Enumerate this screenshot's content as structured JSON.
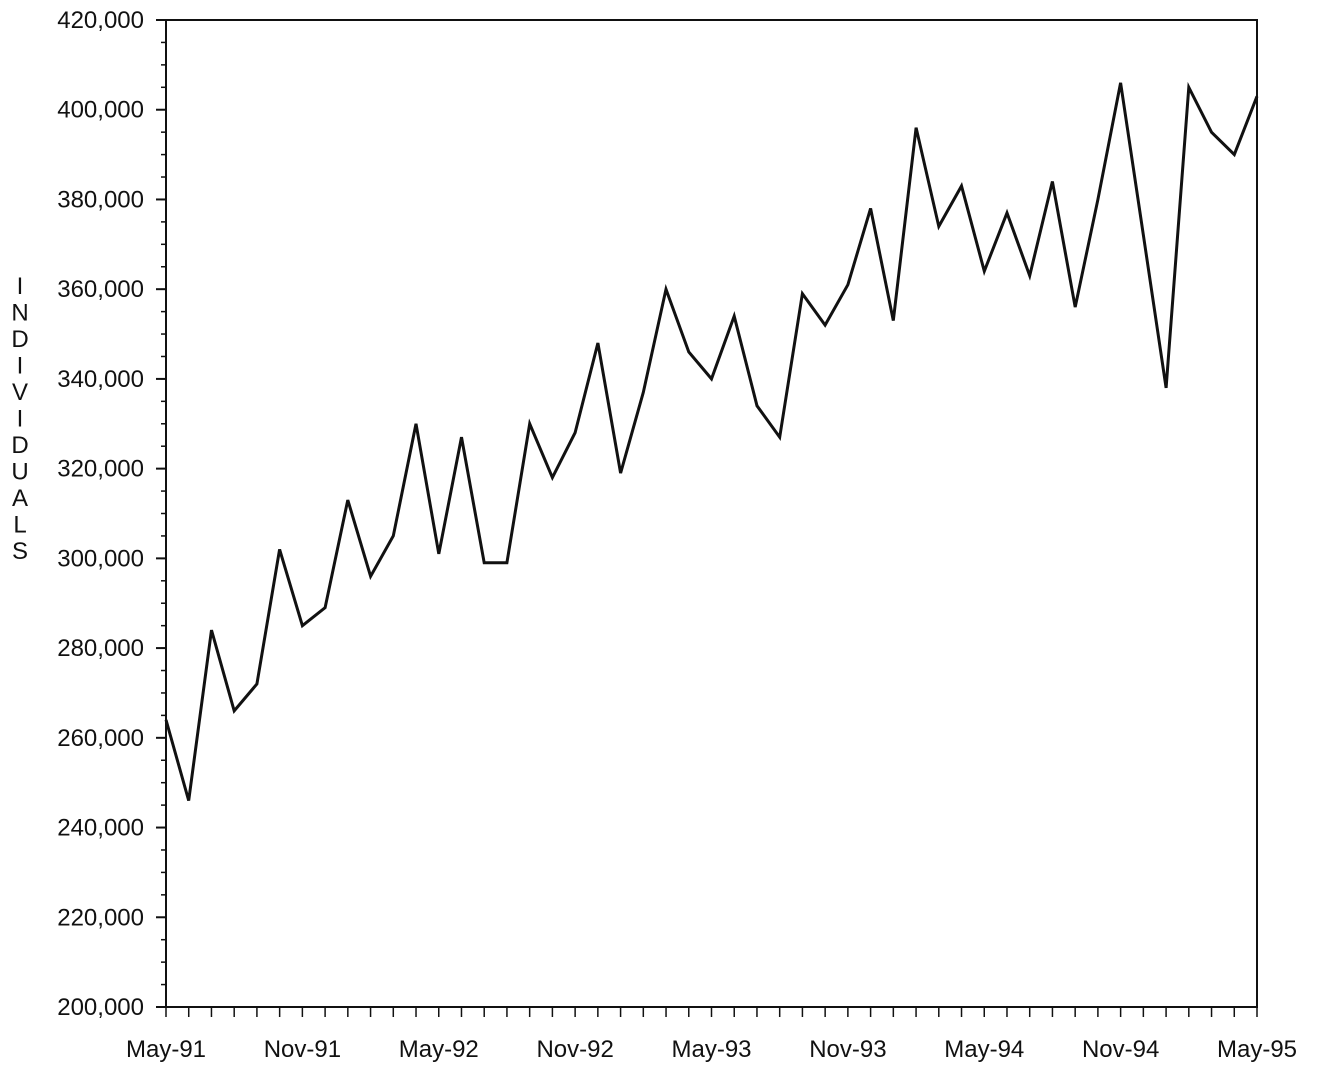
{
  "chart_data": {
    "type": "line",
    "title": "",
    "xlabel": "",
    "ylabel": "INDIVIDUALS",
    "ylim": [
      200000,
      420000
    ],
    "y_ticks": [
      "200,000",
      "220,000",
      "240,000",
      "260,000",
      "280,000",
      "300,000",
      "320,000",
      "340,000",
      "360,000",
      "380,000",
      "400,000",
      "420,000"
    ],
    "x_ticks": [
      "May-91",
      "Nov-91",
      "May-92",
      "Nov-92",
      "May-93",
      "Nov-93",
      "May-94",
      "Nov-94",
      "May-95"
    ],
    "grid": false,
    "legend": "none",
    "line_color": "#111111",
    "series": [
      {
        "x": [
          "May-91",
          "Jun-91",
          "Jul-91",
          "Aug-91",
          "Sep-91",
          "Oct-91",
          "Nov-91",
          "Dec-91",
          "Jan-92",
          "Feb-92",
          "Mar-92",
          "Apr-92",
          "May-92",
          "Jun-92",
          "Jul-92",
          "Aug-92",
          "Sep-92",
          "Oct-92",
          "Nov-92",
          "Dec-92",
          "Jan-93",
          "Feb-93",
          "Mar-93",
          "Apr-93",
          "May-93",
          "Jun-93",
          "Jul-93",
          "Aug-93",
          "Sep-93",
          "Oct-93",
          "Nov-93",
          "Dec-93",
          "Jan-94",
          "Feb-94",
          "Mar-94",
          "Apr-94",
          "May-94",
          "Jun-94",
          "Jul-94",
          "Aug-94",
          "Sep-94",
          "Oct-94",
          "Nov-94",
          "Dec-94",
          "Jan-95",
          "Feb-95",
          "Mar-95",
          "Apr-95",
          "May-95"
        ],
        "values": [
          264000,
          246000,
          284000,
          266000,
          272000,
          302000,
          285000,
          289000,
          313000,
          296000,
          305000,
          330000,
          301000,
          327000,
          299000,
          299000,
          330000,
          318000,
          328000,
          348000,
          319000,
          337000,
          360000,
          346000,
          340000,
          354000,
          334000,
          327000,
          359000,
          352000,
          361000,
          378000,
          353000,
          396000,
          374000,
          383000,
          364000,
          377000,
          363000,
          384000,
          356000,
          380000,
          406000,
          372000,
          338000,
          405000,
          395000,
          390000,
          403000
        ]
      }
    ]
  }
}
